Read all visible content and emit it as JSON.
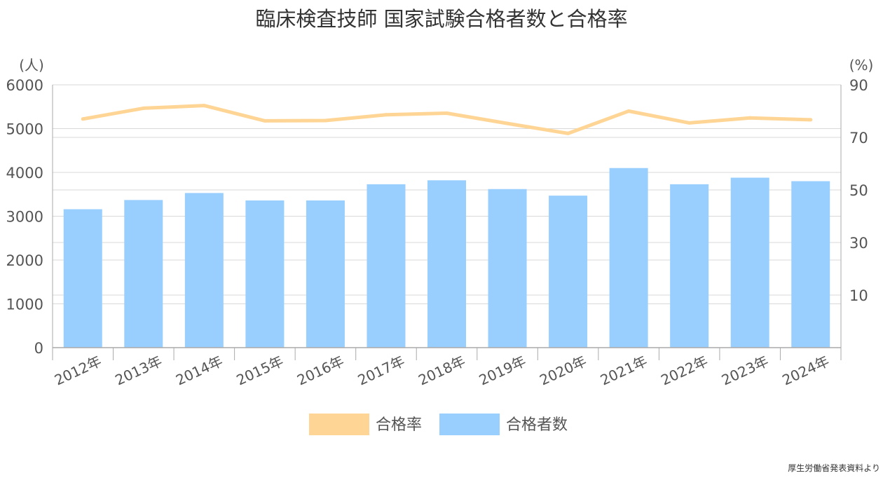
{
  "colors": {
    "bar": "#99cfff",
    "line": "#ffd595",
    "grid": "#d9d9d9",
    "axis": "#aaaaaa",
    "text": "#555555",
    "title": "#333333"
  },
  "chart_data": {
    "type": "bar",
    "title": "臨床検査技師 国家試験合格者数と合格率",
    "source_note": "厚生労働省発表資料より",
    "left_unit": "(人)",
    "right_unit": "(%)",
    "categories": [
      "2012年",
      "2013年",
      "2014年",
      "2015年",
      "2016年",
      "2017年",
      "2018年",
      "2019年",
      "2020年",
      "2021年",
      "2022年",
      "2023年",
      "2024年"
    ],
    "series": [
      {
        "name": "合格者数",
        "type": "bar",
        "axis": "left",
        "values": [
          3160,
          3370,
          3530,
          3360,
          3360,
          3730,
          3820,
          3620,
          3470,
          4100,
          3730,
          3880,
          3800
        ]
      },
      {
        "name": "合格率",
        "type": "line",
        "axis": "right",
        "values": [
          77.0,
          81.1,
          82.1,
          76.3,
          76.4,
          78.6,
          79.2,
          75.3,
          71.5,
          80.0,
          75.5,
          77.4,
          76.7
        ]
      }
    ],
    "legend_order": [
      "合格率",
      "合格者数"
    ],
    "legend_position": "bottom",
    "y_left": {
      "min": 0,
      "max": 6000,
      "ticks": [
        "0",
        "1000",
        "2000",
        "3000",
        "4000",
        "5000",
        "6000"
      ]
    },
    "y_right": {
      "min": -10,
      "max": 90,
      "ticks": [
        "10",
        "30",
        "50",
        "70",
        "90"
      ]
    },
    "grid": true
  }
}
